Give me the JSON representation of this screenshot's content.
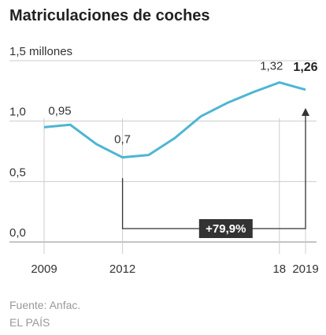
{
  "chart_data": {
    "type": "line",
    "title": "Matriculaciones de coches",
    "x": [
      2009,
      2010,
      2011,
      2012,
      2013,
      2014,
      2015,
      2016,
      2017,
      2018,
      2019
    ],
    "series": [
      {
        "color": "#4db6d3",
        "values": [
          0.95,
          0.97,
          0.81,
          0.7,
          0.72,
          0.86,
          1.04,
          1.15,
          1.24,
          1.32,
          1.26
        ],
        "value_labels": [
          "0,95",
          null,
          null,
          "0,7",
          null,
          null,
          null,
          null,
          null,
          "1,32",
          "1,26"
        ]
      }
    ],
    "xlim": [
      2009,
      2019
    ],
    "xticks": [
      2009,
      2012,
      {
        "value": 2018,
        "label": "18"
      },
      2019
    ],
    "ylim": [
      0,
      1.5
    ],
    "yticks": [
      {
        "value": 0,
        "label": "0,0"
      },
      {
        "value": 0.5,
        "label": "0,5"
      },
      {
        "value": 1.0,
        "label": "1,0"
      },
      {
        "value": 1.5,
        "label": "1,5 millones"
      }
    ],
    "grid": true,
    "annotation": "+79,9%",
    "source": "Fuente: Anfac.",
    "credit": "EL PAÍS"
  }
}
